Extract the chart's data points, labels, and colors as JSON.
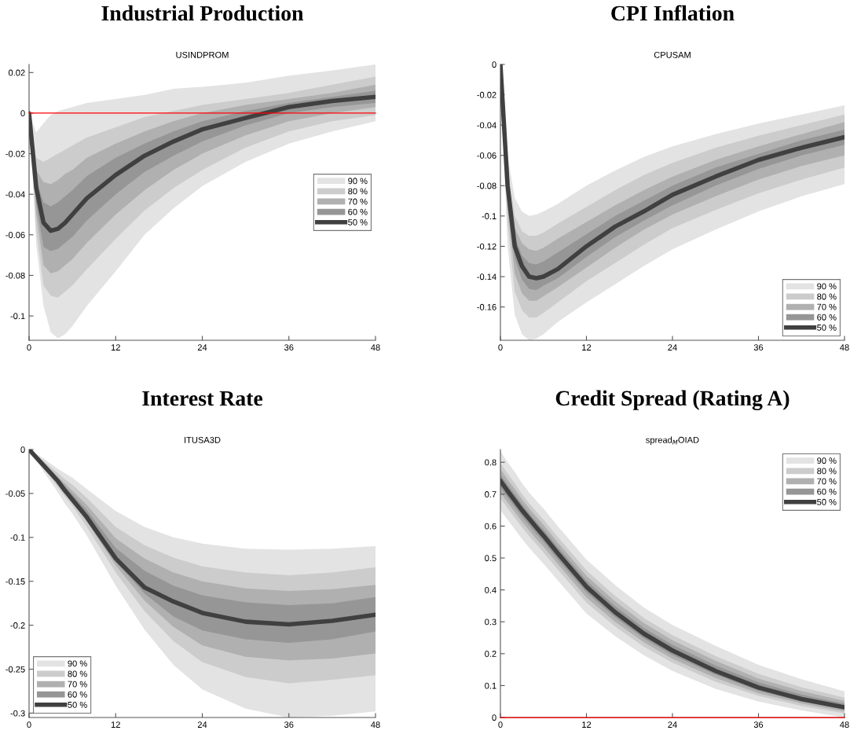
{
  "chart_data": [
    {
      "type": "line",
      "title": "Industrial Production",
      "subtitle": "USINDPROM",
      "x": [
        0,
        1,
        2,
        3,
        4,
        5,
        6,
        8,
        12,
        16,
        20,
        24,
        30,
        36,
        42,
        48
      ],
      "xlim": [
        0,
        48
      ],
      "xticks": [
        0,
        12,
        24,
        36,
        48
      ],
      "ylim": [
        -0.112,
        0.024
      ],
      "yticks": [
        -0.1,
        -0.08,
        -0.06,
        -0.04,
        -0.02,
        0,
        0.02
      ],
      "legend": "center right",
      "ref_lines": [
        {
          "axis": "y",
          "value": 0,
          "color": "#ff0000"
        }
      ],
      "series": [
        {
          "name": "90 %",
          "type": "line",
          "color": "#e3e3e3",
          "values": [
            null,
            null,
            null,
            null,
            null,
            null,
            null,
            null,
            null,
            null,
            null,
            null,
            null,
            null,
            null,
            null
          ],
          "lower": [
            0,
            -0.065,
            -0.095,
            -0.108,
            -0.111,
            -0.109,
            -0.105,
            -0.095,
            -0.078,
            -0.06,
            -0.047,
            -0.036,
            -0.024,
            -0.015,
            -0.009,
            -0.004
          ],
          "upper": [
            0,
            -0.0095,
            -0.005,
            -0.001,
            0.001,
            0.002,
            0.003,
            0.005,
            0.007,
            0.009,
            0.012,
            0.013,
            0.015,
            0.0185,
            0.021,
            0.024
          ]
        },
        {
          "name": "80 %",
          "type": "line",
          "color": "#cccccc",
          "values": [
            null,
            null,
            null,
            null,
            null,
            null,
            null,
            null,
            null,
            null,
            null,
            null,
            null,
            null,
            null,
            null
          ],
          "lower": [
            0,
            -0.058,
            -0.085,
            -0.09,
            -0.091,
            -0.088,
            -0.085,
            -0.077,
            -0.062,
            -0.048,
            -0.037,
            -0.028,
            -0.017,
            -0.009,
            -0.004,
            -0.001
          ],
          "upper": [
            0,
            -0.022,
            -0.024,
            -0.022,
            -0.02,
            -0.018,
            -0.016,
            -0.012,
            -0.007,
            -0.002,
            0.001,
            0.004,
            0.007,
            0.01,
            0.014,
            0.018
          ]
        },
        {
          "name": "70 %",
          "type": "line",
          "color": "#b0b0b0",
          "values": [
            null,
            null,
            null,
            null,
            null,
            null,
            null,
            null,
            null,
            null,
            null,
            null,
            null,
            null,
            null,
            null
          ],
          "lower": [
            0,
            -0.05,
            -0.075,
            -0.079,
            -0.078,
            -0.075,
            -0.072,
            -0.064,
            -0.05,
            -0.038,
            -0.028,
            -0.02,
            -0.011,
            -0.004,
            0.0,
            0.003
          ],
          "upper": [
            0,
            -0.028,
            -0.034,
            -0.035,
            -0.033,
            -0.03,
            -0.028,
            -0.022,
            -0.015,
            -0.009,
            -0.004,
            0.0,
            0.004,
            0.007,
            0.01,
            0.014
          ]
        },
        {
          "name": "60 %",
          "type": "line",
          "color": "#969696",
          "values": [
            null,
            null,
            null,
            null,
            null,
            null,
            null,
            null,
            null,
            null,
            null,
            null,
            null,
            null,
            null,
            null
          ],
          "lower": [
            0,
            -0.045,
            -0.066,
            -0.068,
            -0.067,
            -0.064,
            -0.061,
            -0.053,
            -0.04,
            -0.029,
            -0.021,
            -0.014,
            -0.006,
            0.0,
            0.003,
            0.005
          ],
          "upper": [
            0,
            -0.033,
            -0.044,
            -0.046,
            -0.044,
            -0.041,
            -0.038,
            -0.031,
            -0.022,
            -0.015,
            -0.009,
            -0.004,
            0.001,
            0.005,
            0.008,
            0.011
          ]
        },
        {
          "name": "50 %",
          "type": "line",
          "color": "#404040",
          "values": [
            0,
            -0.037,
            -0.054,
            -0.058,
            -0.057,
            -0.054,
            -0.05,
            -0.042,
            -0.0305,
            -0.021,
            -0.014,
            -0.008,
            -0.0024,
            0.003,
            0.006,
            0.008
          ]
        }
      ]
    },
    {
      "type": "line",
      "title": "CPI Inflation",
      "subtitle": "CPUSAM",
      "x": [
        0,
        1,
        2,
        3,
        4,
        5,
        6,
        8,
        12,
        16,
        20,
        24,
        30,
        36,
        42,
        48
      ],
      "xlim": [
        0,
        48
      ],
      "xticks": [
        0,
        12,
        24,
        36,
        48
      ],
      "ylim": [
        -0.182,
        0
      ],
      "yticks": [
        -0.16,
        -0.14,
        -0.12,
        -0.1,
        -0.08,
        -0.06,
        -0.04,
        -0.02,
        0
      ],
      "legend": "lower right",
      "series": [
        {
          "name": "90 %",
          "type": "line",
          "color": "#e3e3e3",
          "values": [
            null,
            null,
            null,
            null,
            null,
            null,
            null,
            null,
            null,
            null,
            null,
            null,
            null,
            null,
            null,
            null
          ],
          "lower": [
            -0.005,
            -0.12,
            -0.165,
            -0.178,
            -0.182,
            -0.181,
            -0.178,
            -0.17,
            -0.157,
            -0.145,
            -0.133,
            -0.122,
            -0.109,
            -0.097,
            -0.087,
            -0.079
          ],
          "upper": [
            0,
            -0.06,
            -0.088,
            -0.097,
            -0.1,
            -0.099,
            -0.097,
            -0.092,
            -0.08,
            -0.07,
            -0.061,
            -0.054,
            -0.046,
            -0.039,
            -0.033,
            -0.027
          ]
        },
        {
          "name": "80 %",
          "type": "line",
          "color": "#cccccc",
          "values": [
            null,
            null,
            null,
            null,
            null,
            null,
            null,
            null,
            null,
            null,
            null,
            null,
            null,
            null,
            null,
            null
          ],
          "lower": [
            -0.004,
            -0.105,
            -0.15,
            -0.162,
            -0.167,
            -0.167,
            -0.164,
            -0.157,
            -0.143,
            -0.131,
            -0.119,
            -0.108,
            -0.096,
            -0.085,
            -0.076,
            -0.068
          ],
          "upper": [
            0,
            -0.068,
            -0.1,
            -0.11,
            -0.113,
            -0.113,
            -0.111,
            -0.105,
            -0.094,
            -0.083,
            -0.073,
            -0.065,
            -0.055,
            -0.047,
            -0.04,
            -0.033
          ]
        },
        {
          "name": "70 %",
          "type": "line",
          "color": "#b0b0b0",
          "values": [
            null,
            null,
            null,
            null,
            null,
            null,
            null,
            null,
            null,
            null,
            null,
            null,
            null,
            null,
            null,
            null
          ],
          "lower": [
            -0.003,
            -0.096,
            -0.138,
            -0.151,
            -0.156,
            -0.156,
            -0.153,
            -0.147,
            -0.134,
            -0.121,
            -0.109,
            -0.099,
            -0.087,
            -0.076,
            -0.067,
            -0.06
          ],
          "upper": [
            0,
            -0.072,
            -0.108,
            -0.118,
            -0.122,
            -0.123,
            -0.121,
            -0.115,
            -0.104,
            -0.093,
            -0.083,
            -0.074,
            -0.063,
            -0.054,
            -0.046,
            -0.038
          ]
        },
        {
          "name": "60 %",
          "type": "line",
          "color": "#969696",
          "values": [
            null,
            null,
            null,
            null,
            null,
            null,
            null,
            null,
            null,
            null,
            null,
            null,
            null,
            null,
            null,
            null
          ],
          "lower": [
            -0.002,
            -0.088,
            -0.128,
            -0.142,
            -0.148,
            -0.149,
            -0.146,
            -0.141,
            -0.127,
            -0.114,
            -0.103,
            -0.093,
            -0.08,
            -0.069,
            -0.06,
            -0.053
          ],
          "upper": [
            0,
            -0.076,
            -0.114,
            -0.126,
            -0.131,
            -0.132,
            -0.13,
            -0.124,
            -0.112,
            -0.1,
            -0.09,
            -0.08,
            -0.068,
            -0.059,
            -0.05,
            -0.043
          ]
        },
        {
          "name": "50 %",
          "type": "line",
          "color": "#404040",
          "values": [
            0,
            -0.08,
            -0.12,
            -0.133,
            -0.14,
            -0.141,
            -0.14,
            -0.135,
            -0.12,
            -0.107,
            -0.097,
            -0.086,
            -0.074,
            -0.063,
            -0.055,
            -0.048
          ]
        }
      ]
    },
    {
      "type": "line",
      "title": "Interest Rate",
      "subtitle": "ITUSA3D",
      "x": [
        0,
        1,
        2,
        3,
        4,
        5,
        6,
        8,
        12,
        16,
        20,
        24,
        30,
        36,
        42,
        48
      ],
      "xlim": [
        0,
        48
      ],
      "xticks": [
        0,
        12,
        24,
        36,
        48
      ],
      "ylim": [
        -0.305,
        0
      ],
      "yticks": [
        -0.3,
        -0.25,
        -0.2,
        -0.15,
        -0.1,
        -0.05,
        0
      ],
      "legend": "lower left",
      "series": [
        {
          "name": "90 %",
          "type": "line",
          "color": "#e3e3e3",
          "values": [
            null,
            null,
            null,
            null,
            null,
            null,
            null,
            null,
            null,
            null,
            null,
            null,
            null,
            null,
            null,
            null
          ],
          "lower": [
            0,
            -0.012,
            -0.025,
            -0.037,
            -0.049,
            -0.062,
            -0.073,
            -0.098,
            -0.155,
            -0.205,
            -0.245,
            -0.273,
            -0.295,
            -0.305,
            -0.303,
            -0.298
          ],
          "upper": [
            0,
            -0.005,
            -0.01,
            -0.016,
            -0.022,
            -0.027,
            -0.032,
            -0.045,
            -0.07,
            -0.088,
            -0.1,
            -0.107,
            -0.113,
            -0.114,
            -0.113,
            -0.11
          ]
        },
        {
          "name": "80 %",
          "type": "line",
          "color": "#cccccc",
          "values": [
            null,
            null,
            null,
            null,
            null,
            null,
            null,
            null,
            null,
            null,
            null,
            null,
            null,
            null,
            null,
            null
          ],
          "lower": [
            0,
            -0.01,
            -0.022,
            -0.032,
            -0.043,
            -0.054,
            -0.064,
            -0.088,
            -0.14,
            -0.184,
            -0.218,
            -0.242,
            -0.259,
            -0.266,
            -0.262,
            -0.257
          ],
          "upper": [
            0,
            -0.006,
            -0.013,
            -0.02,
            -0.027,
            -0.034,
            -0.04,
            -0.055,
            -0.088,
            -0.109,
            -0.123,
            -0.133,
            -0.14,
            -0.143,
            -0.14,
            -0.134
          ]
        },
        {
          "name": "70 %",
          "type": "line",
          "color": "#b0b0b0",
          "values": [
            null,
            null,
            null,
            null,
            null,
            null,
            null,
            null,
            null,
            null,
            null,
            null,
            null,
            null,
            null,
            null
          ],
          "lower": [
            0,
            -0.009,
            -0.02,
            -0.03,
            -0.04,
            -0.05,
            -0.06,
            -0.082,
            -0.132,
            -0.172,
            -0.202,
            -0.223,
            -0.236,
            -0.24,
            -0.238,
            -0.232
          ],
          "upper": [
            0,
            -0.007,
            -0.015,
            -0.023,
            -0.031,
            -0.039,
            -0.047,
            -0.063,
            -0.101,
            -0.124,
            -0.14,
            -0.15,
            -0.158,
            -0.161,
            -0.159,
            -0.154
          ]
        },
        {
          "name": "60 %",
          "type": "line",
          "color": "#969696",
          "values": [
            null,
            null,
            null,
            null,
            null,
            null,
            null,
            null,
            null,
            null,
            null,
            null,
            null,
            null,
            null,
            null
          ],
          "lower": [
            0,
            -0.0095,
            -0.019,
            -0.028,
            -0.038,
            -0.048,
            -0.058,
            -0.08,
            -0.128,
            -0.164,
            -0.19,
            -0.206,
            -0.216,
            -0.22,
            -0.216,
            -0.207
          ],
          "upper": [
            0,
            -0.008,
            -0.016,
            -0.025,
            -0.033,
            -0.042,
            -0.051,
            -0.069,
            -0.112,
            -0.138,
            -0.155,
            -0.166,
            -0.174,
            -0.177,
            -0.175,
            -0.168
          ]
        },
        {
          "name": "50 %",
          "type": "line",
          "color": "#404040",
          "values": [
            0,
            -0.009,
            -0.018,
            -0.027,
            -0.036,
            -0.047,
            -0.057,
            -0.077,
            -0.124,
            -0.157,
            -0.173,
            -0.186,
            -0.196,
            -0.199,
            -0.195,
            -0.188
          ]
        }
      ]
    },
    {
      "type": "line",
      "title": "Credit Spread (Rating A)",
      "subtitle": "spread$_{M}$OIAD",
      "x": [
        0,
        1,
        2,
        3,
        4,
        5,
        6,
        8,
        12,
        16,
        20,
        24,
        30,
        36,
        42,
        48
      ],
      "xlim": [
        0,
        48
      ],
      "xticks": [
        0,
        12,
        24,
        36,
        48
      ],
      "ylim": [
        0,
        0.84
      ],
      "yticks": [
        0,
        0.1,
        0.2,
        0.3,
        0.4,
        0.5,
        0.6,
        0.7,
        0.8
      ],
      "legend": "upper right",
      "ref_lines": [
        {
          "axis": "y",
          "value": 0,
          "color": "#ff0000"
        }
      ],
      "series": [
        {
          "name": "90 %",
          "type": "line",
          "color": "#e3e3e3",
          "values": [
            null,
            null,
            null,
            null,
            null,
            null,
            null,
            null,
            null,
            null,
            null,
            null,
            null,
            null,
            null,
            null
          ],
          "lower": [
            0.65,
            0.62,
            0.59,
            0.56,
            0.533,
            0.507,
            0.482,
            0.43,
            0.326,
            0.255,
            0.195,
            0.146,
            0.09,
            0.05,
            0.022,
            0.0
          ],
          "upper": [
            0.835,
            0.8,
            0.77,
            0.735,
            0.705,
            0.68,
            0.655,
            0.6,
            0.495,
            0.415,
            0.345,
            0.29,
            0.225,
            0.165,
            0.12,
            0.082
          ]
        },
        {
          "name": "80 %",
          "type": "line",
          "color": "#cccccc",
          "values": [
            null,
            null,
            null,
            null,
            null,
            null,
            null,
            null,
            null,
            null,
            null,
            null,
            null,
            null,
            null,
            null
          ],
          "lower": [
            0.687,
            0.656,
            0.626,
            0.596,
            0.569,
            0.543,
            0.517,
            0.464,
            0.36,
            0.285,
            0.222,
            0.172,
            0.112,
            0.068,
            0.036,
            0.013
          ],
          "upper": [
            0.798,
            0.764,
            0.734,
            0.701,
            0.672,
            0.646,
            0.621,
            0.566,
            0.461,
            0.381,
            0.312,
            0.258,
            0.193,
            0.137,
            0.095,
            0.062
          ]
        },
        {
          "name": "70 %",
          "type": "line",
          "color": "#b0b0b0",
          "values": [
            null,
            null,
            null,
            null,
            null,
            null,
            null,
            null,
            null,
            null,
            null,
            null,
            null,
            null,
            null,
            null
          ],
          "lower": [
            0.705,
            0.674,
            0.644,
            0.614,
            0.587,
            0.56,
            0.535,
            0.481,
            0.376,
            0.3,
            0.236,
            0.184,
            0.124,
            0.076,
            0.044,
            0.019
          ],
          "upper": [
            0.779,
            0.746,
            0.716,
            0.684,
            0.656,
            0.63,
            0.604,
            0.549,
            0.444,
            0.364,
            0.296,
            0.242,
            0.178,
            0.122,
            0.083,
            0.052
          ]
        },
        {
          "name": "60 %",
          "type": "line",
          "color": "#969696",
          "values": [
            null,
            null,
            null,
            null,
            null,
            null,
            null,
            null,
            null,
            null,
            null,
            null,
            null,
            null,
            null,
            null
          ],
          "lower": [
            0.722,
            0.69,
            0.66,
            0.63,
            0.603,
            0.576,
            0.551,
            0.496,
            0.392,
            0.314,
            0.248,
            0.196,
            0.134,
            0.084,
            0.05,
            0.025
          ],
          "upper": [
            0.762,
            0.73,
            0.7,
            0.669,
            0.641,
            0.614,
            0.589,
            0.534,
            0.429,
            0.349,
            0.281,
            0.228,
            0.163,
            0.11,
            0.072,
            0.043
          ]
        },
        {
          "name": "50 %",
          "type": "line",
          "color": "#404040",
          "values": [
            0.742,
            0.71,
            0.68,
            0.65,
            0.623,
            0.596,
            0.57,
            0.515,
            0.41,
            0.33,
            0.263,
            0.21,
            0.146,
            0.094,
            0.058,
            0.032
          ]
        }
      ]
    }
  ]
}
